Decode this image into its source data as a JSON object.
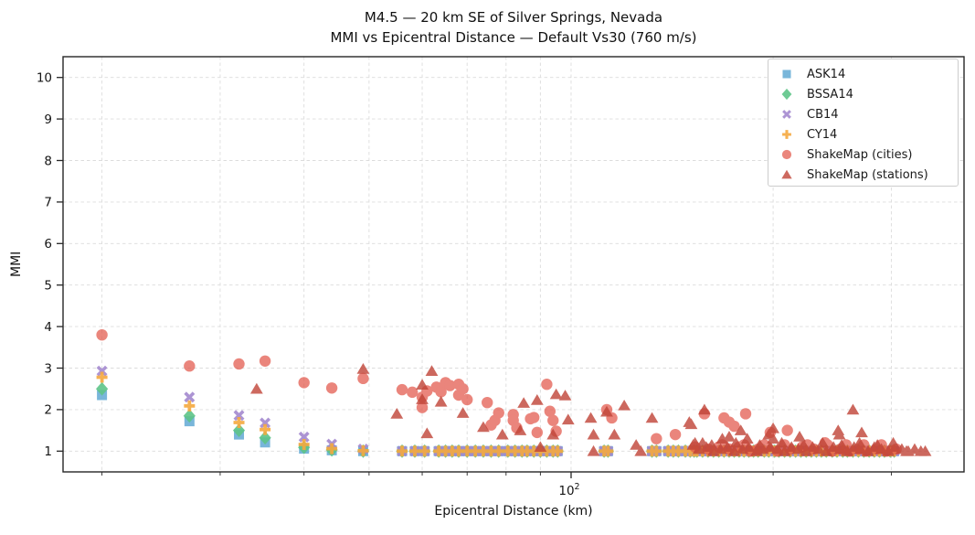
{
  "chart_data": {
    "type": "scatter",
    "title": "M4.5 — 20 km SE of Silver Springs, Nevada",
    "subtitle": "MMI vs Epicentral Distance — Default Vs30 (760 m/s)",
    "xlabel": "Epicentral Distance (km)",
    "ylabel": "MMI",
    "x_scale": "log",
    "xlim": [
      17.5,
      385
    ],
    "ylim": [
      0.5,
      10.5
    ],
    "y_ticks": [
      1,
      2,
      3,
      4,
      5,
      6,
      7,
      8,
      9,
      10
    ],
    "x_major_ticks": [
      {
        "value": 100,
        "label_base": "10",
        "label_exp": "2"
      }
    ],
    "x_minor_ticks": [
      20,
      30,
      40,
      50,
      60,
      70,
      80,
      90,
      200,
      300
    ],
    "grid": {
      "show": true,
      "color": "#dcdcdc",
      "dash": "3.5 3"
    },
    "legend_position": "upper right",
    "axis_color": "#262626",
    "series": [
      {
        "name": "ASK14",
        "marker": "square",
        "color": "#6aaed6",
        "alpha": 0.9,
        "source": "gmpe",
        "values_key": "ask14"
      },
      {
        "name": "BSSA14",
        "marker": "diamond",
        "color": "#5ec488",
        "alpha": 0.9,
        "source": "gmpe",
        "values_key": "bssa14"
      },
      {
        "name": "CB14",
        "marker": "x",
        "color": "#a489cf",
        "alpha": 0.9,
        "source": "gmpe",
        "values_key": "cb14"
      },
      {
        "name": "CY14",
        "marker": "plus",
        "color": "#f5a93f",
        "alpha": 0.9,
        "source": "gmpe",
        "values_key": "cy14"
      },
      {
        "name": "ShakeMap (cities)",
        "marker": "circle",
        "color": "#e2574a",
        "alpha": 0.72,
        "source": "points",
        "points_key": "cities"
      },
      {
        "name": "ShakeMap (stations)",
        "marker": "triangle",
        "color": "#c04337",
        "alpha": 0.8,
        "source": "points",
        "points_key": "stations"
      }
    ],
    "gmpe": {
      "default_value": 1.0,
      "distances": [
        20,
        27,
        32,
        35,
        40,
        44,
        49,
        56,
        58.5,
        60.5,
        63.5,
        65,
        66.5,
        68,
        70,
        72,
        74,
        76,
        78,
        80.5,
        82.5,
        84.5,
        86,
        88,
        90,
        92,
        94,
        95.5,
        112,
        113.5,
        132,
        134,
        139.5,
        142,
        144.5,
        148,
        150.5,
        152.5,
        154,
        157,
        160,
        163,
        166,
        169,
        172,
        175,
        178,
        181,
        184,
        187,
        190,
        194,
        197,
        201,
        204,
        208,
        212,
        216,
        220,
        224,
        228,
        232,
        236,
        240,
        245,
        249,
        254,
        258,
        263,
        268,
        273,
        278,
        283,
        288,
        293,
        299,
        303
      ],
      "ask14": [
        2.35,
        1.72,
        1.4,
        1.21,
        1.06,
        1.02,
        1.0
      ],
      "bssa14": [
        2.5,
        1.85,
        1.5,
        1.32,
        1.09,
        1.03,
        1.0
      ],
      "cb14": [
        2.93,
        2.3,
        1.86,
        1.68,
        1.34,
        1.17,
        1.05
      ],
      "cy14": [
        2.78,
        2.09,
        1.69,
        1.52,
        1.16,
        1.06,
        1.01
      ]
    },
    "cities": [
      [
        20,
        3.8
      ],
      [
        27,
        3.05
      ],
      [
        32,
        3.1
      ],
      [
        35,
        3.17
      ],
      [
        40,
        2.65
      ],
      [
        44,
        2.52
      ],
      [
        49,
        2.75
      ],
      [
        56,
        2.48
      ],
      [
        58,
        2.42
      ],
      [
        60,
        2.3
      ],
      [
        60,
        2.05
      ],
      [
        61,
        2.45
      ],
      [
        63,
        2.54
      ],
      [
        64,
        2.43
      ],
      [
        65,
        2.65
      ],
      [
        66,
        2.58
      ],
      [
        68,
        2.61
      ],
      [
        68,
        2.35
      ],
      [
        69,
        2.5
      ],
      [
        70,
        2.24
      ],
      [
        75,
        2.17
      ],
      [
        76,
        1.63
      ],
      [
        77,
        1.74
      ],
      [
        78,
        1.92
      ],
      [
        82,
        1.88
      ],
      [
        82,
        1.74
      ],
      [
        83,
        1.56
      ],
      [
        87,
        1.78
      ],
      [
        88,
        1.81
      ],
      [
        89,
        1.45
      ],
      [
        92,
        2.61
      ],
      [
        93,
        1.96
      ],
      [
        94,
        1.74
      ],
      [
        95,
        1.48
      ],
      [
        113,
        2.0
      ],
      [
        115,
        1.8
      ],
      [
        134,
        1.3
      ],
      [
        143,
        1.4
      ],
      [
        153,
        1.1
      ],
      [
        158,
        1.9
      ],
      [
        160,
        1.05
      ],
      [
        166,
        1.1
      ],
      [
        168,
        1.15
      ],
      [
        169,
        1.8
      ],
      [
        172,
        1.7
      ],
      [
        172,
        1.05
      ],
      [
        175,
        1.6
      ],
      [
        178,
        1.1
      ],
      [
        181,
        1.15
      ],
      [
        182,
        1.9
      ],
      [
        185,
        1.0
      ],
      [
        190,
        1.05
      ],
      [
        194,
        1.15
      ],
      [
        196,
        1.1
      ],
      [
        198,
        1.45
      ],
      [
        203,
        1.0
      ],
      [
        208,
        1.15
      ],
      [
        210,
        1.5
      ],
      [
        212,
        1.05
      ],
      [
        221,
        1.1
      ],
      [
        225,
        1.15
      ],
      [
        230,
        1.05
      ],
      [
        239,
        1.2
      ],
      [
        241,
        1.15
      ],
      [
        245,
        1.0
      ],
      [
        252,
        1.05
      ],
      [
        257,
        1.15
      ],
      [
        260,
        1.0
      ],
      [
        268,
        1.05
      ],
      [
        273,
        1.15
      ],
      [
        275,
        1.0
      ],
      [
        285,
        1.05
      ],
      [
        290,
        1.15
      ],
      [
        295,
        1.0
      ],
      [
        305,
        1.05
      ]
    ],
    "stations": [
      [
        34,
        2.5
      ],
      [
        49,
        2.98
      ],
      [
        55,
        1.9
      ],
      [
        60,
        2.25
      ],
      [
        60,
        2.6
      ],
      [
        62,
        2.93
      ],
      [
        61,
        1.43
      ],
      [
        64,
        2.19
      ],
      [
        69,
        1.92
      ],
      [
        74,
        1.58
      ],
      [
        79,
        1.4
      ],
      [
        84,
        1.5
      ],
      [
        85,
        2.16
      ],
      [
        89,
        2.23
      ],
      [
        90,
        1.1
      ],
      [
        94,
        1.4
      ],
      [
        95,
        2.37
      ],
      [
        98,
        2.34
      ],
      [
        99,
        1.76
      ],
      [
        107,
        1.8
      ],
      [
        108,
        1.4
      ],
      [
        108,
        1.0
      ],
      [
        113,
        1.95
      ],
      [
        116,
        1.4
      ],
      [
        120,
        2.1
      ],
      [
        125,
        1.15
      ],
      [
        127,
        1.0
      ],
      [
        132,
        1.8
      ],
      [
        150,
        1.7
      ],
      [
        151,
        1.65
      ],
      [
        152,
        1.15
      ],
      [
        153,
        1.2
      ],
      [
        155,
        1.05
      ],
      [
        157,
        1.2
      ],
      [
        158,
        2.0
      ],
      [
        159,
        1.1
      ],
      [
        162,
        1.15
      ],
      [
        163,
        1.0
      ],
      [
        167,
        1.05
      ],
      [
        168,
        1.3
      ],
      [
        171,
        1.1
      ],
      [
        172,
        1.35
      ],
      [
        175,
        1.0
      ],
      [
        176,
        1.2
      ],
      [
        179,
        1.5
      ],
      [
        180,
        1.05
      ],
      [
        183,
        1.3
      ],
      [
        184,
        1.1
      ],
      [
        189,
        1.0
      ],
      [
        191,
        1.15
      ],
      [
        193,
        1.05
      ],
      [
        197,
        1.4
      ],
      [
        198,
        1.1
      ],
      [
        200,
        1.55
      ],
      [
        200,
        1.3
      ],
      [
        203,
        1.05
      ],
      [
        206,
        1.2
      ],
      [
        208,
        1.0
      ],
      [
        213,
        1.1
      ],
      [
        218,
        1.05
      ],
      [
        219,
        1.35
      ],
      [
        222,
        1.15
      ],
      [
        224,
        1.0
      ],
      [
        229,
        1.1
      ],
      [
        234,
        1.05
      ],
      [
        237,
        1.2
      ],
      [
        240,
        1.0
      ],
      [
        246,
        1.1
      ],
      [
        250,
        1.5
      ],
      [
        251,
        1.4
      ],
      [
        252,
        1.05
      ],
      [
        253,
        1.15
      ],
      [
        258,
        1.0
      ],
      [
        263,
        2.0
      ],
      [
        264,
        1.1
      ],
      [
        269,
        1.2
      ],
      [
        270,
        1.05
      ],
      [
        271,
        1.45
      ],
      [
        277,
        1.0
      ],
      [
        283,
        1.1
      ],
      [
        286,
        1.15
      ],
      [
        290,
        1.05
      ],
      [
        297,
        1.0
      ],
      [
        302,
        1.2
      ],
      [
        304,
        1.1
      ],
      [
        311,
        1.05
      ],
      [
        316,
        1.0
      ],
      [
        318,
        1.0
      ],
      [
        325,
        1.05
      ],
      [
        332,
        1.0
      ],
      [
        337,
        1.0
      ]
    ]
  }
}
